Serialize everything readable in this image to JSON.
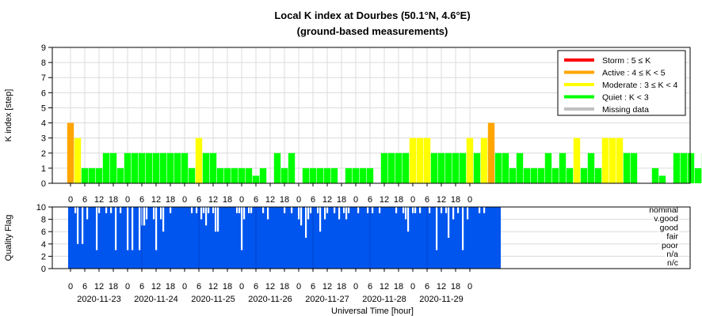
{
  "chart_data": [
    {
      "type": "bar",
      "title": "Local K index at Dourbes (50.1°N, 4.6°E)",
      "subtitle": "(ground-based measurements)",
      "ylabel": "K index [step]",
      "ylim": [
        0,
        9
      ],
      "yticks": [
        "0",
        "1",
        "2",
        "3",
        "4",
        "5",
        "6",
        "7",
        "8",
        "9"
      ],
      "x_tick_labels": [
        "0",
        "6",
        "12",
        "18",
        "0",
        "6",
        "12",
        "18",
        "0",
        "6",
        "12",
        "18",
        "0",
        "6",
        "12",
        "18",
        "0",
        "6",
        "12",
        "18",
        "0",
        "6",
        "12",
        "18",
        "0",
        "6",
        "12",
        "18",
        "0"
      ],
      "grid": true,
      "legend_placement": "top-right",
      "legend": [
        {
          "label": "Storm : 5 ≤ K",
          "color": "#ff0000"
        },
        {
          "label": "Active : 4 ≤ K < 5",
          "color": "#ffa500"
        },
        {
          "label": "Moderate : 3 ≤ K < 4",
          "color": "#ffff00"
        },
        {
          "label": "Quiet : K < 3",
          "color": "#00ff00"
        },
        {
          "label": "Missing data",
          "color": "#c0c0c0"
        }
      ],
      "values": [
        4,
        3,
        1,
        1,
        1,
        2,
        2,
        1,
        2,
        2,
        2,
        2,
        2,
        2,
        2,
        2,
        2,
        1,
        3,
        2,
        2,
        1,
        1,
        1,
        1,
        1,
        0.5,
        1,
        0,
        2,
        1,
        2,
        0,
        1,
        1,
        1,
        1,
        1,
        0,
        1,
        1,
        1,
        1,
        0,
        2,
        2,
        2,
        2,
        3,
        3,
        3,
        2,
        2,
        2,
        2,
        2,
        3,
        2,
        3,
        4,
        2,
        2,
        1,
        2,
        1,
        1,
        1,
        2,
        1,
        2,
        1,
        3,
        1,
        2,
        1,
        3,
        3,
        3,
        2,
        2,
        0,
        0,
        1,
        0.5,
        0,
        2,
        2,
        2,
        1,
        2,
        2,
        3,
        3,
        2,
        1,
        3,
        1,
        1,
        0,
        0,
        0,
        1,
        2,
        1,
        2,
        3,
        1,
        1,
        1,
        2,
        2,
        1,
        3,
        2,
        1,
        3,
        3,
        3,
        2,
        2,
        1,
        2,
        2,
        1,
        2,
        1,
        3,
        1,
        0,
        0,
        1,
        2,
        2,
        2,
        2,
        3,
        1,
        2,
        2,
        2,
        2,
        1,
        0,
        0,
        0
      ],
      "value_colors": "derived from K: 4 orange, 3 yellow, otherwise green"
    },
    {
      "type": "bar",
      "ylabel": "Quality Flag",
      "ylim": [
        0,
        10
      ],
      "yticks": [
        "0",
        "2",
        "4",
        "6",
        "8",
        "10"
      ],
      "x_tick_labels": [
        "0",
        "6",
        "12",
        "18",
        "0",
        "6",
        "12",
        "18",
        "0",
        "6",
        "12",
        "18",
        "0",
        "6",
        "12",
        "18",
        "0",
        "6",
        "12",
        "18",
        "0",
        "6",
        "12",
        "18",
        "0",
        "6",
        "12",
        "18",
        "0"
      ],
      "date_labels": [
        "2020-11-23",
        "2020-11-24",
        "2020-11-25",
        "2020-11-26",
        "2020-11-27",
        "2020-11-28",
        "2020-11-29"
      ],
      "xlabel": "Universal Time [hour]",
      "category_labels": [
        "nominal",
        "v.good",
        "good",
        "fair",
        "poor",
        "n/a",
        "n/c"
      ],
      "color": "#0055ee",
      "value": 10,
      "x_range_hours": [
        0,
        180
      ],
      "dips": [
        [
          2,
          1
        ],
        [
          3,
          6
        ],
        [
          5,
          6
        ],
        [
          7,
          2
        ],
        [
          11,
          7
        ],
        [
          12,
          1
        ],
        [
          15,
          1
        ],
        [
          17,
          1
        ],
        [
          19,
          7
        ],
        [
          21,
          1
        ],
        [
          24,
          7
        ],
        [
          26,
          7
        ],
        [
          29,
          7
        ],
        [
          30,
          3
        ],
        [
          31,
          3
        ],
        [
          32,
          2
        ],
        [
          35,
          2
        ],
        [
          36,
          7
        ],
        [
          38,
          2
        ],
        [
          39,
          4
        ],
        [
          42,
          1
        ],
        [
          51,
          1
        ],
        [
          53,
          1
        ],
        [
          55,
          2
        ],
        [
          56,
          1
        ],
        [
          57,
          3
        ],
        [
          58,
          1
        ],
        [
          60,
          1
        ],
        [
          61,
          4
        ],
        [
          62,
          4
        ],
        [
          70,
          1
        ],
        [
          71,
          1
        ],
        [
          72,
          7
        ],
        [
          73,
          2
        ],
        [
          75,
          1
        ],
        [
          76,
          1
        ],
        [
          81,
          1
        ],
        [
          83,
          2
        ],
        [
          90,
          1
        ],
        [
          93,
          1
        ],
        [
          96,
          2
        ],
        [
          97,
          3
        ],
        [
          99,
          5
        ],
        [
          100,
          2
        ],
        [
          101,
          1
        ],
        [
          104,
          1
        ],
        [
          105,
          4
        ],
        [
          107,
          2
        ],
        [
          108,
          1
        ],
        [
          111,
          1
        ],
        [
          113,
          2
        ],
        [
          115,
          1
        ],
        [
          116,
          2
        ],
        [
          117,
          1
        ],
        [
          121,
          1
        ],
        [
          125,
          1
        ],
        [
          127,
          1
        ],
        [
          130,
          1
        ],
        [
          137,
          1
        ],
        [
          140,
          1
        ],
        [
          141,
          2
        ],
        [
          142,
          4
        ],
        [
          144,
          1
        ],
        [
          145,
          1
        ],
        [
          147,
          1
        ],
        [
          151,
          1
        ],
        [
          154,
          7
        ],
        [
          156,
          1
        ],
        [
          158,
          1
        ],
        [
          159,
          5
        ],
        [
          161,
          2
        ],
        [
          163,
          1
        ],
        [
          165,
          7
        ],
        [
          167,
          2
        ],
        [
          172,
          1
        ],
        [
          174,
          1
        ]
      ]
    }
  ]
}
